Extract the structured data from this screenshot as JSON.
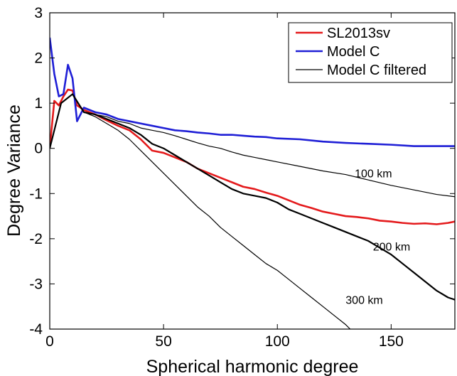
{
  "chart_data": {
    "type": "line",
    "title": "",
    "xlabel": "Spherical harmonic degree",
    "ylabel": "Degree Variance",
    "xlim": [
      0,
      178
    ],
    "ylim": [
      -4,
      3
    ],
    "xticks": [
      0,
      50,
      100,
      150
    ],
    "yticks": [
      3,
      2,
      1,
      0,
      -1,
      -2,
      -3,
      -4
    ],
    "grid": false,
    "legend_position": "top-right",
    "legend": [
      {
        "label": "SL2013sv",
        "color": "#e41a1c",
        "width": 2.6
      },
      {
        "label": "Model C",
        "color": "#1f1fd6",
        "width": 2.6
      },
      {
        "label": "Model C filtered",
        "color": "#000000",
        "width": 1.2
      }
    ],
    "annotations": [
      {
        "text": "100 km",
        "x": 134,
        "y": -0.55
      },
      {
        "text": "200 km",
        "x": 142,
        "y": -2.17
      },
      {
        "text": "300 km",
        "x": 130,
        "y": -3.35
      }
    ],
    "series": [
      {
        "name": "SL2013sv",
        "color": "#e41a1c",
        "width": 2.6,
        "x": [
          0,
          2,
          4,
          6,
          8,
          10,
          12,
          15,
          20,
          25,
          30,
          35,
          40,
          45,
          50,
          55,
          60,
          65,
          70,
          75,
          80,
          85,
          90,
          95,
          100,
          105,
          110,
          115,
          120,
          125,
          130,
          135,
          140,
          145,
          150,
          155,
          160,
          165,
          170,
          175,
          178
        ],
        "y": [
          0.0,
          1.05,
          0.95,
          1.15,
          1.3,
          1.28,
          0.95,
          0.85,
          0.75,
          0.62,
          0.5,
          0.4,
          0.2,
          -0.05,
          -0.1,
          -0.2,
          -0.3,
          -0.45,
          -0.55,
          -0.65,
          -0.75,
          -0.85,
          -0.9,
          -0.98,
          -1.05,
          -1.15,
          -1.25,
          -1.32,
          -1.4,
          -1.45,
          -1.5,
          -1.52,
          -1.55,
          -1.6,
          -1.62,
          -1.65,
          -1.67,
          -1.66,
          -1.68,
          -1.65,
          -1.62
        ]
      },
      {
        "name": "Model C",
        "color": "#1f1fd6",
        "width": 2.6,
        "x": [
          0,
          2,
          4,
          6,
          8,
          10,
          12,
          15,
          20,
          25,
          30,
          35,
          40,
          45,
          50,
          55,
          60,
          65,
          70,
          75,
          80,
          85,
          90,
          95,
          100,
          110,
          120,
          130,
          140,
          150,
          160,
          170,
          178
        ],
        "y": [
          2.45,
          1.65,
          1.15,
          1.2,
          1.85,
          1.55,
          0.6,
          0.9,
          0.8,
          0.75,
          0.65,
          0.6,
          0.55,
          0.5,
          0.45,
          0.4,
          0.38,
          0.35,
          0.33,
          0.3,
          0.3,
          0.28,
          0.26,
          0.25,
          0.22,
          0.2,
          0.15,
          0.12,
          0.1,
          0.08,
          0.05,
          0.05,
          0.05
        ]
      },
      {
        "name": "",
        "color": "#000000",
        "width": 1.2,
        "x": [
          0,
          5,
          10,
          15,
          20,
          25,
          30,
          35,
          40,
          45,
          50,
          55,
          60,
          65,
          70,
          75,
          80,
          85,
          90,
          95,
          100,
          110,
          120,
          130,
          140,
          150,
          160,
          170,
          178
        ],
        "y": [
          0.0,
          1.0,
          1.2,
          0.8,
          0.75,
          0.7,
          0.6,
          0.55,
          0.45,
          0.4,
          0.35,
          0.28,
          0.2,
          0.12,
          0.05,
          0.0,
          -0.08,
          -0.15,
          -0.2,
          -0.25,
          -0.3,
          -0.4,
          -0.5,
          -0.58,
          -0.7,
          -0.82,
          -0.92,
          -1.02,
          -1.07
        ]
      },
      {
        "name": "",
        "color": "#000000",
        "width": 2.2,
        "x": [
          0,
          5,
          10,
          15,
          20,
          25,
          30,
          35,
          40,
          45,
          50,
          55,
          60,
          65,
          70,
          75,
          80,
          85,
          90,
          95,
          100,
          105,
          110,
          115,
          120,
          125,
          130,
          135,
          140,
          145,
          150,
          155,
          160,
          165,
          170,
          175,
          178
        ],
        "y": [
          0.0,
          1.0,
          1.2,
          0.8,
          0.75,
          0.65,
          0.55,
          0.45,
          0.3,
          0.1,
          0.0,
          -0.15,
          -0.3,
          -0.45,
          -0.6,
          -0.75,
          -0.9,
          -1.0,
          -1.05,
          -1.1,
          -1.2,
          -1.35,
          -1.45,
          -1.55,
          -1.65,
          -1.75,
          -1.85,
          -1.95,
          -2.05,
          -2.2,
          -2.35,
          -2.55,
          -2.75,
          -2.95,
          -3.15,
          -3.3,
          -3.35
        ]
      },
      {
        "name": "",
        "color": "#000000",
        "width": 1.2,
        "x": [
          0,
          5,
          10,
          15,
          20,
          25,
          30,
          35,
          40,
          45,
          50,
          55,
          60,
          65,
          70,
          75,
          80,
          85,
          90,
          95,
          100,
          105,
          110,
          115,
          120,
          125,
          130,
          132
        ],
        "y": [
          0.0,
          1.0,
          1.2,
          0.8,
          0.7,
          0.55,
          0.4,
          0.2,
          -0.05,
          -0.3,
          -0.55,
          -0.8,
          -1.05,
          -1.3,
          -1.5,
          -1.75,
          -1.95,
          -2.15,
          -2.35,
          -2.55,
          -2.7,
          -2.9,
          -3.1,
          -3.3,
          -3.5,
          -3.7,
          -3.9,
          -4.0
        ]
      }
    ]
  }
}
